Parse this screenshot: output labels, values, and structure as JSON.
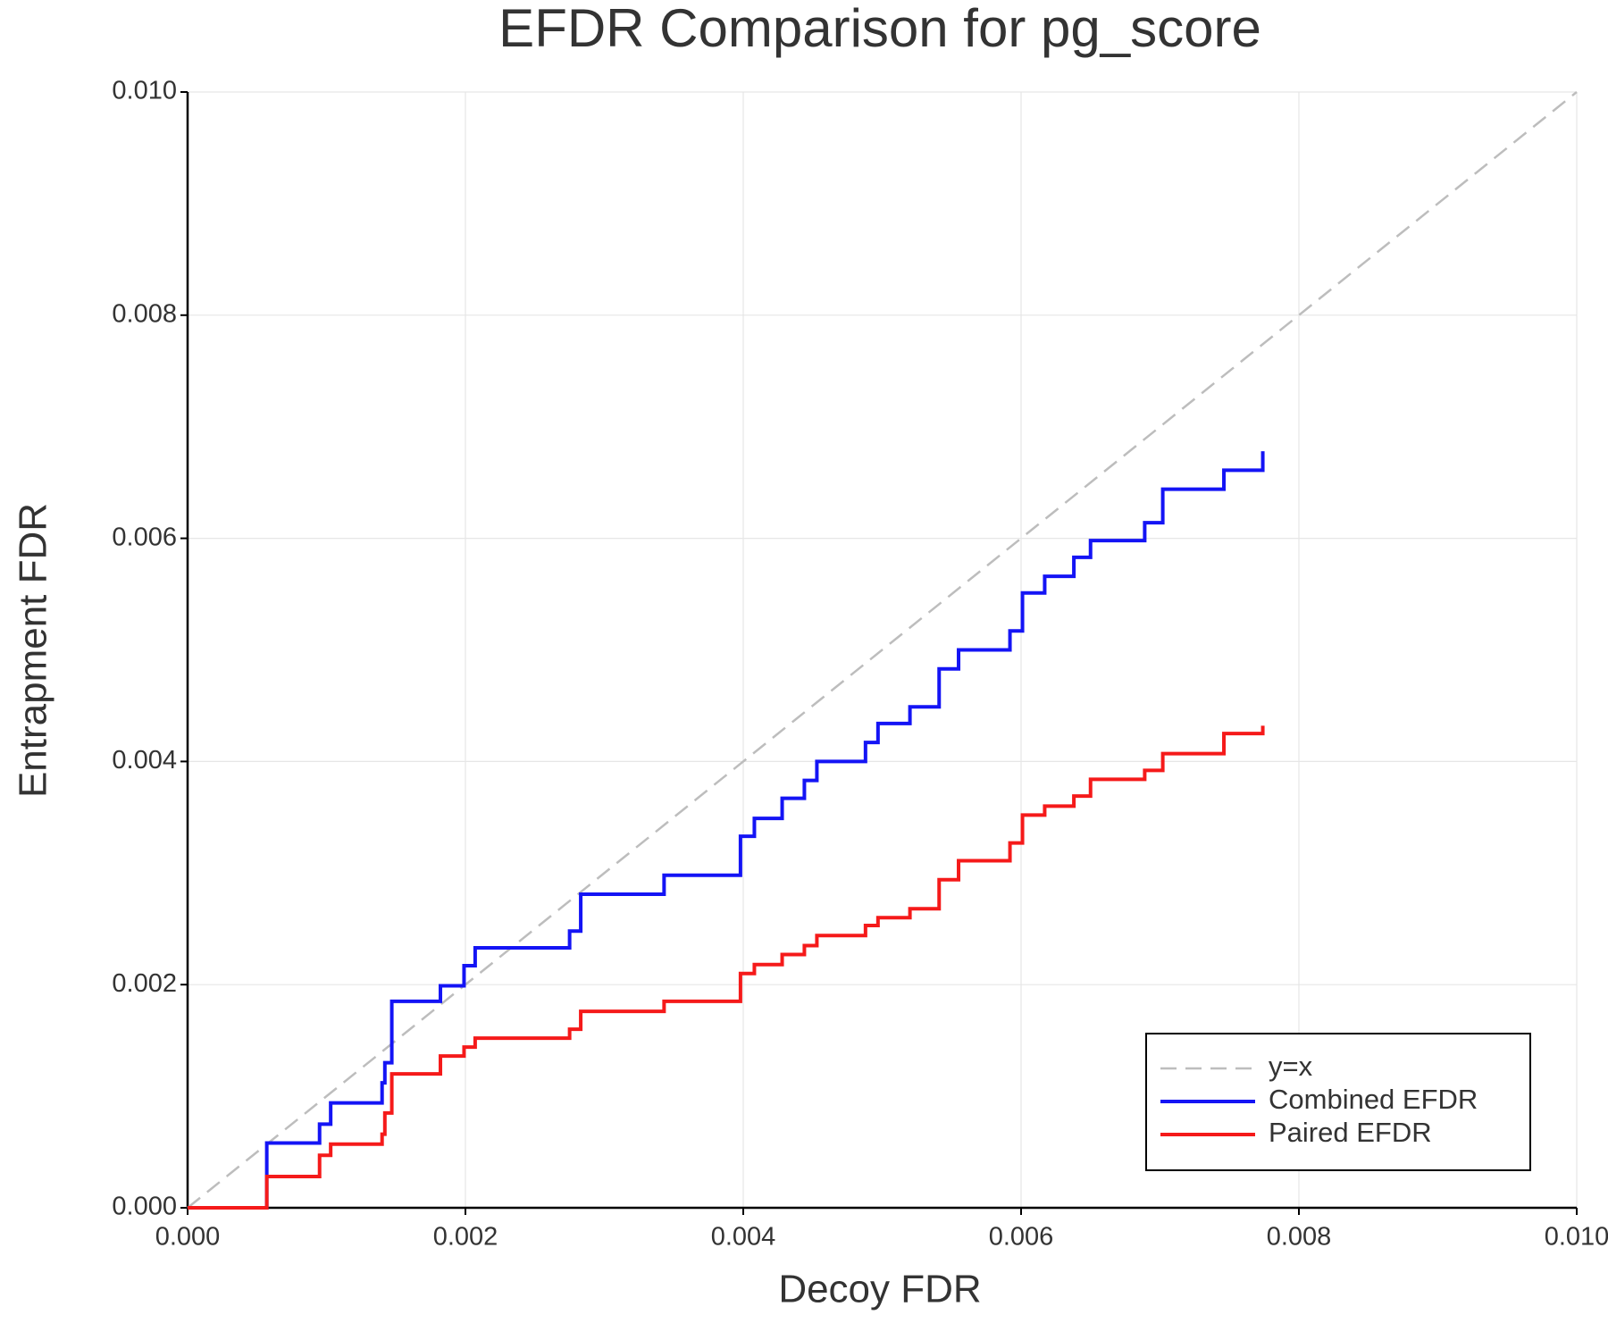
{
  "chart_data": {
    "type": "line",
    "title": "EFDR Comparison for pg_score",
    "x_label": "Decoy FDR",
    "y_label": "Entrapment FDR",
    "xlim": [
      0,
      0.01
    ],
    "ylim": [
      0,
      0.01
    ],
    "xticks": [
      {
        "value": 0,
        "label": "0.000"
      },
      0.002,
      0.004,
      0.006,
      0.008,
      {
        "value": 0.01,
        "label": "0.010"
      }
    ],
    "yticks": [
      {
        "value": 0,
        "label": "0.000"
      },
      0.002,
      0.004,
      0.006,
      0.008,
      {
        "value": 0.01,
        "label": "0.010"
      }
    ],
    "grid": true,
    "legend": "lower right",
    "series": [
      {
        "name": "y=x",
        "color": "#bdbdbd",
        "linestyle": "dashed",
        "x": [
          0,
          0.01
        ],
        "values": [
          0,
          0.01
        ]
      },
      {
        "name": "Combined EFDR",
        "color": "#1414f5",
        "linestyle": "solid",
        "x": [
          0,
          0.00057,
          0.00057,
          0.00095,
          0.00095,
          0.00103,
          0.00103,
          0.0014,
          0.0014,
          0.00142,
          0.00142,
          0.00147,
          0.00147,
          0.00182,
          0.00182,
          0.00199,
          0.00199,
          0.00207,
          0.00207,
          0.00275,
          0.00275,
          0.00283,
          0.00283,
          0.00343,
          0.00343,
          0.00398,
          0.00398,
          0.00408,
          0.00408,
          0.00428,
          0.00428,
          0.00444,
          0.00444,
          0.00453,
          0.00453,
          0.00488,
          0.00488,
          0.00497,
          0.00497,
          0.0052,
          0.0052,
          0.00541,
          0.00541,
          0.00555,
          0.00555,
          0.00592,
          0.00592,
          0.00601,
          0.00601,
          0.00617,
          0.00617,
          0.00638,
          0.00638,
          0.0065,
          0.0065,
          0.00689,
          0.00689,
          0.00702,
          0.00702,
          0.00746,
          0.00746,
          0.00774,
          0.00774
        ],
        "values": [
          0,
          0,
          0.00058,
          0.00058,
          0.00075,
          0.00075,
          0.00094,
          0.00094,
          0.00112,
          0.00112,
          0.0013,
          0.0013,
          0.00185,
          0.00185,
          0.00199,
          0.00199,
          0.00217,
          0.00217,
          0.00233,
          0.00233,
          0.00248,
          0.00248,
          0.00281,
          0.00281,
          0.00298,
          0.00298,
          0.00333,
          0.00333,
          0.00349,
          0.00349,
          0.00367,
          0.00367,
          0.00383,
          0.00383,
          0.004,
          0.004,
          0.00417,
          0.00417,
          0.00434,
          0.00434,
          0.00449,
          0.00449,
          0.00483,
          0.00483,
          0.005,
          0.005,
          0.00517,
          0.00517,
          0.00551,
          0.00551,
          0.00566,
          0.00566,
          0.00583,
          0.00583,
          0.00598,
          0.00598,
          0.00614,
          0.00614,
          0.00644,
          0.00644,
          0.00661,
          0.00661,
          0.00678
        ]
      },
      {
        "name": "Paired EFDR",
        "color": "#f51a1a",
        "linestyle": "solid",
        "x": [
          0,
          0.00057,
          0.00057,
          0.00095,
          0.00095,
          0.00103,
          0.00103,
          0.0014,
          0.0014,
          0.00142,
          0.00142,
          0.00147,
          0.00147,
          0.00182,
          0.00182,
          0.00199,
          0.00199,
          0.00207,
          0.00207,
          0.00275,
          0.00275,
          0.00283,
          0.00283,
          0.00343,
          0.00343,
          0.00398,
          0.00398,
          0.00408,
          0.00408,
          0.00428,
          0.00428,
          0.00444,
          0.00444,
          0.00453,
          0.00453,
          0.00488,
          0.00488,
          0.00497,
          0.00497,
          0.0052,
          0.0052,
          0.00541,
          0.00541,
          0.00555,
          0.00555,
          0.00592,
          0.00592,
          0.00601,
          0.00601,
          0.00617,
          0.00617,
          0.00638,
          0.00638,
          0.0065,
          0.0065,
          0.00689,
          0.00689,
          0.00702,
          0.00702,
          0.00746,
          0.00746,
          0.00774,
          0.00774
        ],
        "values": [
          0,
          0,
          0.00028,
          0.00028,
          0.00047,
          0.00047,
          0.00057,
          0.00057,
          0.00066,
          0.00066,
          0.00085,
          0.00085,
          0.0012,
          0.0012,
          0.00136,
          0.00136,
          0.00144,
          0.00144,
          0.00152,
          0.00152,
          0.0016,
          0.0016,
          0.00176,
          0.00176,
          0.00185,
          0.00185,
          0.0021,
          0.0021,
          0.00218,
          0.00218,
          0.00227,
          0.00227,
          0.00235,
          0.00235,
          0.00244,
          0.00244,
          0.00253,
          0.00253,
          0.0026,
          0.0026,
          0.00268,
          0.00268,
          0.00294,
          0.00294,
          0.00311,
          0.00311,
          0.00327,
          0.00327,
          0.00352,
          0.00352,
          0.0036,
          0.0036,
          0.00369,
          0.00369,
          0.00384,
          0.00384,
          0.00392,
          0.00392,
          0.00407,
          0.00407,
          0.00425,
          0.00425,
          0.00432
        ]
      }
    ]
  }
}
